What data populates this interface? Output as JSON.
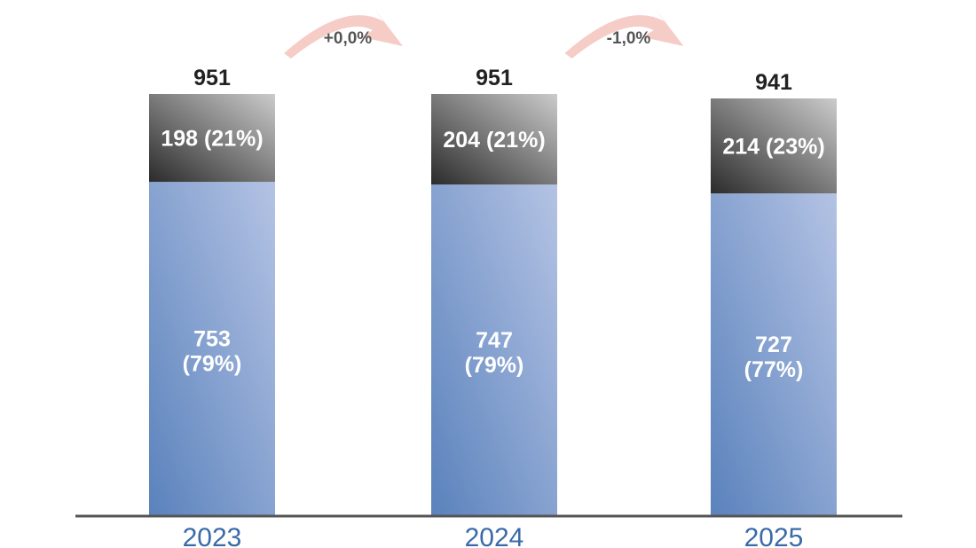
{
  "chart_data": {
    "type": "bar",
    "stacked": true,
    "categories": [
      "2023",
      "2024",
      "2025"
    ],
    "series": [
      {
        "values": [
          753,
          747,
          727
        ],
        "labels": [
          "753\n(79%)",
          "747\n(79%)",
          "727\n(77%)"
        ]
      },
      {
        "values": [
          198,
          204,
          214
        ],
        "labels": [
          "198 (21%)",
          "204 (21%)",
          "214 (23%)"
        ]
      }
    ],
    "totals": [
      "951",
      "951",
      "941"
    ],
    "changes": [
      "+0,0%",
      "-1,0%"
    ],
    "ylim": [
      0,
      951
    ],
    "grid": false,
    "legend": "none",
    "colors": {
      "bottom_light": "#b4c3e4",
      "bottom_dark": "#5a82bc",
      "top_light": "#cbcbcb",
      "top_dark": "#2b2b2b",
      "axis": "#555555",
      "category_text": "#3a6aa8",
      "total_text": "#222222",
      "segment_text": "#ffffff",
      "arrow": "#f6c9c3",
      "arrow_text": "#555555"
    }
  }
}
